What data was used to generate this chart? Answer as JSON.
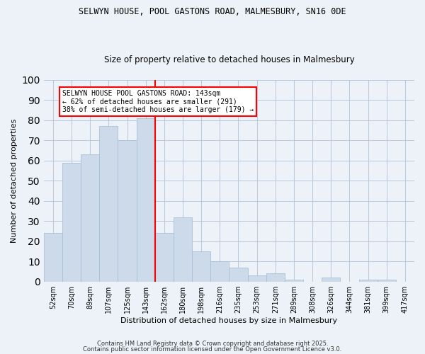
{
  "title1": "SELWYN HOUSE, POOL GASTONS ROAD, MALMESBURY, SN16 0DE",
  "title2": "Size of property relative to detached houses in Malmesbury",
  "xlabel": "Distribution of detached houses by size in Malmesbury",
  "ylabel": "Number of detached properties",
  "bar_labels": [
    "52sqm",
    "70sqm",
    "89sqm",
    "107sqm",
    "125sqm",
    "143sqm",
    "162sqm",
    "180sqm",
    "198sqm",
    "216sqm",
    "235sqm",
    "253sqm",
    "271sqm",
    "289sqm",
    "308sqm",
    "326sqm",
    "344sqm",
    "381sqm",
    "399sqm",
    "417sqm"
  ],
  "bar_values": [
    24,
    59,
    63,
    77,
    70,
    81,
    24,
    32,
    15,
    10,
    7,
    3,
    4,
    1,
    0,
    2,
    0,
    1,
    1,
    0
  ],
  "bar_color": "#ccdaea",
  "bar_edge_color": "#a8c0d8",
  "red_line_index": 5,
  "annotation_text": "SELWYN HOUSE POOL GASTONS ROAD: 143sqm\n← 62% of detached houses are smaller (291)\n38% of semi-detached houses are larger (179) →",
  "annotation_box_color": "white",
  "annotation_box_edge": "red",
  "ylim": [
    0,
    100
  ],
  "yticks": [
    0,
    10,
    20,
    30,
    40,
    50,
    60,
    70,
    80,
    90,
    100
  ],
  "footer1": "Contains HM Land Registry data © Crown copyright and database right 2025.",
  "footer2": "Contains public sector information licensed under the Open Government Licence v3.0.",
  "bg_color": "#edf2f8",
  "grid_color": "#b8c8dc",
  "title1_fontsize": 8.5,
  "title2_fontsize": 8.5
}
